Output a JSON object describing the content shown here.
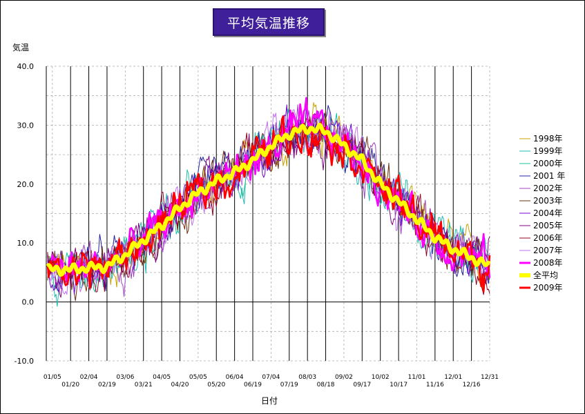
{
  "chart_data": {
    "type": "line",
    "title": "平均気温推移",
    "ylabel": "気温",
    "xlabel": "日付",
    "ylim": [
      -10,
      40
    ],
    "y_ticks": [
      "40.0",
      "30.0",
      "20.0",
      "10.0",
      "0.0",
      "-10.0"
    ],
    "x_tick_labels_top": [
      "01/05",
      "02/04",
      "03/06",
      "04/05",
      "05/05",
      "06/04",
      "07/04",
      "08/03",
      "09/02",
      "10/02",
      "11/01",
      "12/01",
      "12/31"
    ],
    "x_tick_labels_bottom": [
      "01/20",
      "02/19",
      "03/21",
      "04/20",
      "05/20",
      "06/19",
      "07/19",
      "08/18",
      "09/17",
      "10/17",
      "11/16",
      "12/16"
    ],
    "grid": true,
    "legend_position": "right",
    "series": [
      {
        "name": "1998年",
        "color": "#c8a000"
      },
      {
        "name": "1999年",
        "color": "#20b8b0"
      },
      {
        "name": "2000年",
        "color": "#20c0a0"
      },
      {
        "name": "2001 年",
        "color": "#2020a0"
      },
      {
        "name": "2002年",
        "color": "#a040c0"
      },
      {
        "name": "2003年",
        "color": "#6a3010"
      },
      {
        "name": "2004年",
        "color": "#7000d0"
      },
      {
        "name": "2005年",
        "color": "#800080"
      },
      {
        "name": "2006年",
        "color": "#900020"
      },
      {
        "name": "2007年",
        "color": "#c070f0"
      },
      {
        "name": "2008年",
        "color": "#ff00ff"
      },
      {
        "name": "全平均",
        "color": "#ffff00"
      },
      {
        "name": "2009年",
        "color": "#ff0000"
      }
    ],
    "average_curve": {
      "dates": [
        "01/05",
        "01/20",
        "02/04",
        "02/19",
        "03/06",
        "03/21",
        "04/05",
        "04/20",
        "05/05",
        "05/20",
        "06/04",
        "06/19",
        "07/04",
        "07/19",
        "08/03",
        "08/18",
        "09/02",
        "09/17",
        "10/02",
        "10/17",
        "11/01",
        "11/16",
        "12/01",
        "12/16",
        "12/31"
      ],
      "values": [
        5.5,
        5.5,
        5.8,
        6.0,
        8.0,
        10.5,
        13.0,
        16.0,
        18.5,
        20.5,
        22.0,
        24.0,
        26.5,
        28.5,
        29.5,
        29.0,
        26.5,
        24.0,
        20.0,
        17.0,
        14.0,
        11.0,
        9.0,
        7.5,
        6.0
      ]
    }
  }
}
